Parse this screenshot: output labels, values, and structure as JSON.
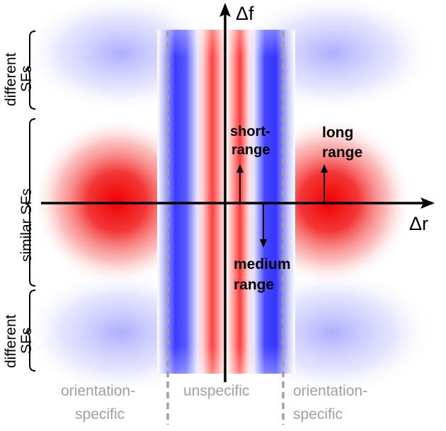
{
  "axes": {
    "x_label": "Δr",
    "y_label": "Δf"
  },
  "annotations": {
    "short_range": [
      "short-",
      "range"
    ],
    "long_range": [
      "long",
      "range"
    ],
    "medium_range": [
      "medium",
      "range"
    ]
  },
  "side_labels": {
    "top": [
      "different",
      "SFs"
    ],
    "middle": "similar SFs",
    "bottom": [
      "different",
      "SFs"
    ]
  },
  "regions": {
    "left": [
      "orientation-",
      "specific"
    ],
    "center": "unspecific",
    "right": [
      "orientation-",
      "specific"
    ]
  },
  "colors": {
    "positive": "#ff0000",
    "negative": "#0000ff",
    "divider": "#a0a0a0",
    "region_text": "#a0a0a0"
  }
}
